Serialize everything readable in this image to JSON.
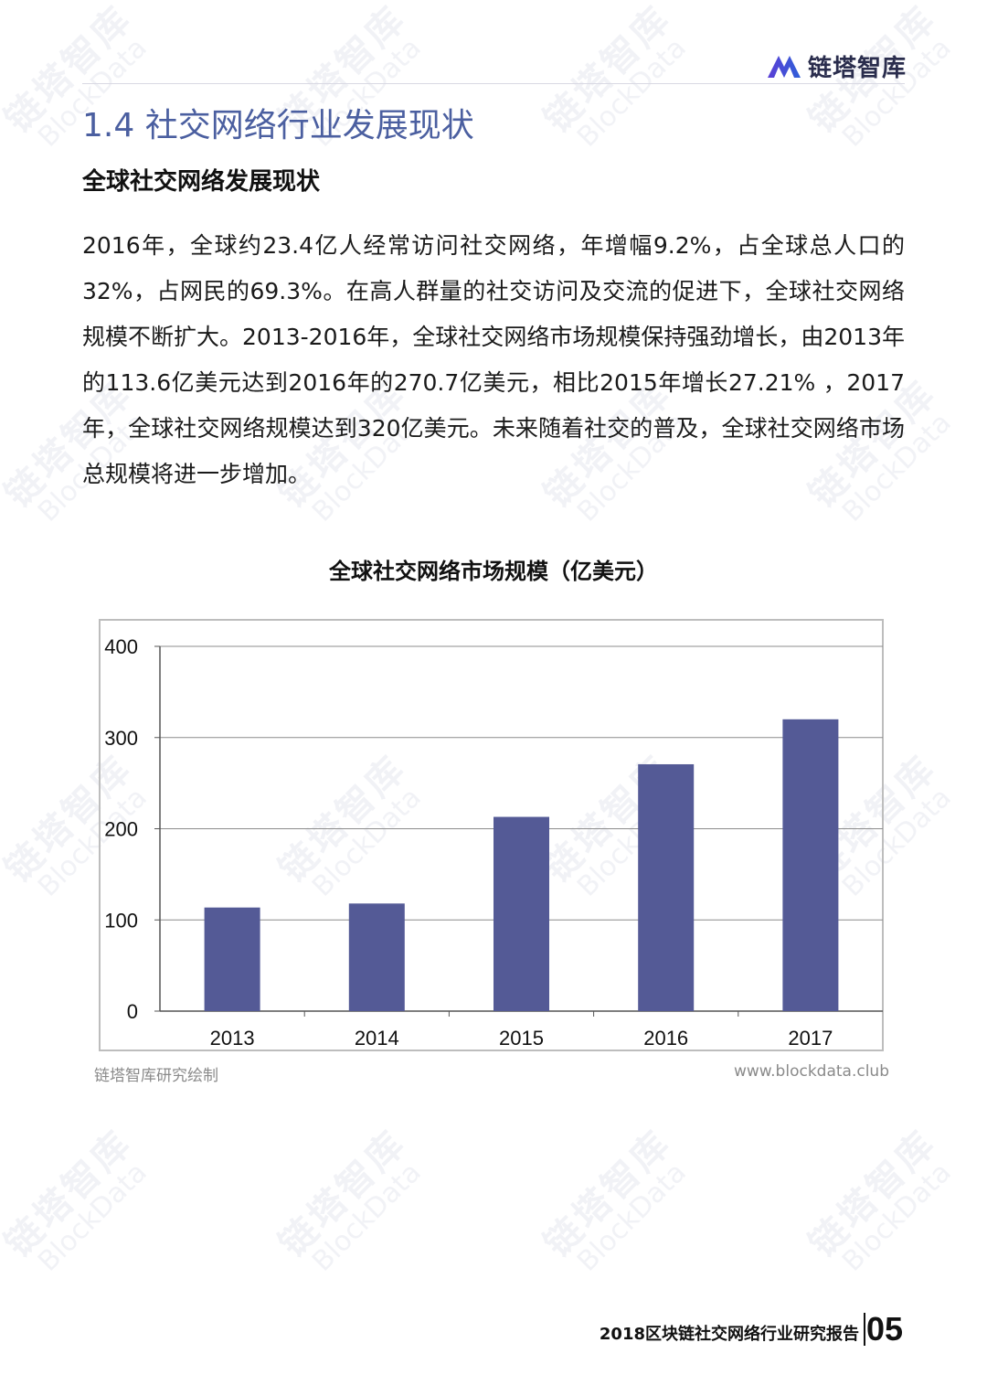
{
  "header": {
    "logo_text": "链塔智库",
    "logo_icon": "blockdata-logo-icon"
  },
  "section_title": "1.4 社交网络行业发展现状",
  "subheading": "全球社交网络发展现状",
  "paragraph": "2016年，全球约23.4亿人经常访问社交网络，年增幅9.2%，占全球总人口的32%，占网民的69.3%。在高人群量的社交访问及交流的促进下，全球社交网络规模不断扩大。2013-2016年，全球社交网络市场规模保持强劲增长，由2013年的113.6亿美元达到2016年的270.7亿美元，相比2015年增长27.21% ，2017年，全球社交网络规模达到320亿美元。未来随着社交的普及，全球社交网络市场总规模将进一步增加。",
  "chart_data": {
    "type": "bar",
    "title": "全球社交网络市场规模（亿美元）",
    "categories": [
      "2013",
      "2014",
      "2015",
      "2016",
      "2017"
    ],
    "values": [
      113.6,
      118,
      213,
      270.7,
      320
    ],
    "ylim": [
      0,
      400
    ],
    "yticks": [
      0,
      100,
      200,
      300,
      400
    ],
    "xlabel": "",
    "ylabel": "",
    "grid": true,
    "bar_color": "#545a96"
  },
  "source": {
    "left": "链塔智库研究绘制",
    "right": "www.blockdata.club"
  },
  "watermark": {
    "cn": "链塔智库",
    "en": "BlockData"
  },
  "footer": {
    "report_title": "2018区块链社交网络行业研究报告",
    "page_number": "05"
  }
}
